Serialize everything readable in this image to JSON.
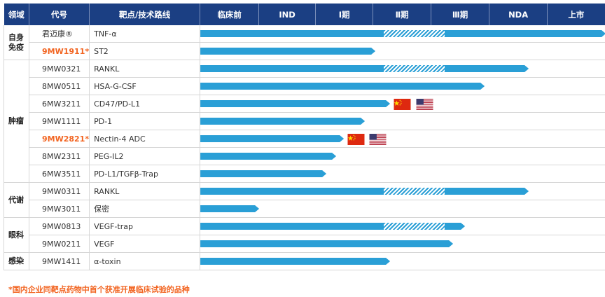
{
  "header": {
    "domain": "领域",
    "code": "代号",
    "target": "靶点/技术路线",
    "stages": [
      "临床前",
      "IND",
      "Ⅰ期",
      "Ⅱ期",
      "Ⅲ期",
      "NDA",
      "上市"
    ]
  },
  "groups": [
    {
      "name": "自身免疫",
      "rows": 2
    },
    {
      "name": "肿瘤",
      "rows": 7
    },
    {
      "name": "代谢",
      "rows": 2
    },
    {
      "name": "眼科",
      "rows": 2
    },
    {
      "name": "感染",
      "rows": 1
    }
  ],
  "rows": [
    {
      "code": "君迈康®",
      "target": "TNF-α",
      "highlight": false,
      "progress": 0.995,
      "hatch": [
        0.45,
        0.6
      ],
      "flags": []
    },
    {
      "code": "9MW1911*",
      "target": "ST2",
      "highlight": true,
      "progress": 0.43,
      "hatch": null,
      "flags": []
    },
    {
      "code": "9MW0321",
      "target": "RANKL",
      "highlight": false,
      "progress": 0.805,
      "hatch": [
        0.45,
        0.6
      ],
      "flags": []
    },
    {
      "code": "8MW0511",
      "target": "HSA-G-CSF",
      "highlight": false,
      "progress": 0.697,
      "hatch": null,
      "flags": []
    },
    {
      "code": "6MW3211",
      "target": "CD47/PD-L1",
      "highlight": false,
      "progress": 0.465,
      "hatch": null,
      "flags": [
        "cn",
        "us"
      ]
    },
    {
      "code": "9MW1111",
      "target": "PD-1",
      "highlight": false,
      "progress": 0.403,
      "hatch": null,
      "flags": []
    },
    {
      "code": "9MW2821*",
      "target": "Nectin-4 ADC",
      "highlight": true,
      "progress": 0.353,
      "hatch": null,
      "flags": [
        "cn",
        "us"
      ]
    },
    {
      "code": "8MW2311",
      "target": "PEG-IL2",
      "highlight": false,
      "progress": 0.333,
      "hatch": null,
      "flags": []
    },
    {
      "code": "6MW3511",
      "target": "PD-L1/TGFβ-Trap",
      "highlight": false,
      "progress": 0.31,
      "hatch": null,
      "flags": []
    },
    {
      "code": "9MW0311",
      "target": "RANKL",
      "highlight": false,
      "progress": 0.805,
      "hatch": [
        0.45,
        0.6
      ],
      "flags": []
    },
    {
      "code": "9MW3011",
      "target": "保密",
      "highlight": false,
      "progress": 0.145,
      "hatch": null,
      "flags": []
    },
    {
      "code": "9MW0813",
      "target": "VEGF-trap",
      "highlight": false,
      "progress": 0.65,
      "hatch": [
        0.45,
        0.6
      ],
      "flags": []
    },
    {
      "code": "9MW0211",
      "target": "VEGF",
      "highlight": false,
      "progress": 0.62,
      "hatch": null,
      "flags": []
    },
    {
      "code": "9MW1411",
      "target": "α-toxin",
      "highlight": false,
      "progress": 0.465,
      "hatch": null,
      "flags": []
    }
  ],
  "footnote": "*国内企业同靶点药物中首个获准开展临床试验的品种",
  "colors": {
    "header_bg": "#1b3f83",
    "bar": "#2a9fd6",
    "highlight": "#f26522"
  }
}
